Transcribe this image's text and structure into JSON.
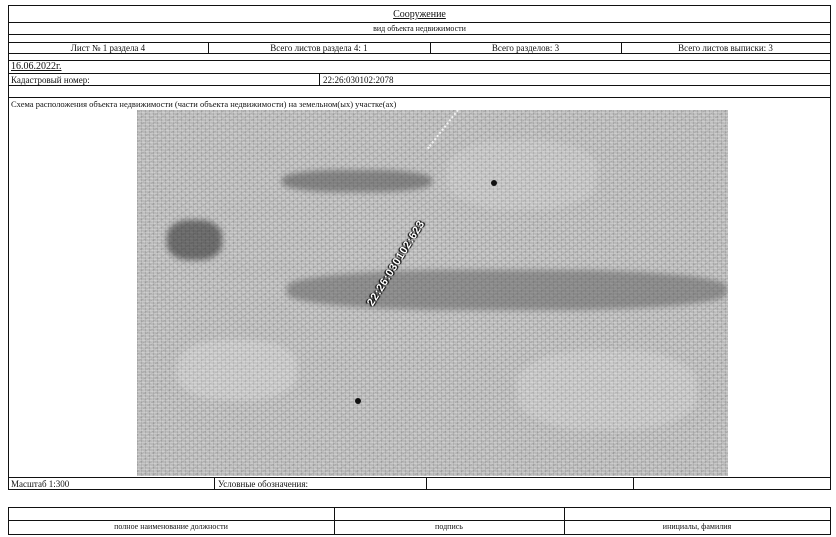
{
  "header": {
    "title": "Сооружение",
    "subtitle": "вид объекта недвижимости"
  },
  "sheet_info": {
    "sheet": "Лист № 1 раздела 4",
    "sheets_in_section": "Всего листов раздела 4: 1",
    "sections_total": "Всего разделов: 3",
    "sheets_extract_total": "Всего листов выписки: 3"
  },
  "date": "16.06.2022г.",
  "cadastral": {
    "label": "Кадастровый номер:",
    "value": "22:26:030102:2078"
  },
  "scheme": {
    "caption": "Схема расположения объекта недвижимости (части объекта недвижимости) на земельном(ых) участке(ах)",
    "parcel_label": "22:26:030102:623"
  },
  "scale": {
    "label": "Масштаб 1:300",
    "legend_label": "Условные обозначения:"
  },
  "signature": {
    "position_label": "полное наименование должности",
    "signature_label": "подпись",
    "name_label": "инициалы, фамилия"
  }
}
